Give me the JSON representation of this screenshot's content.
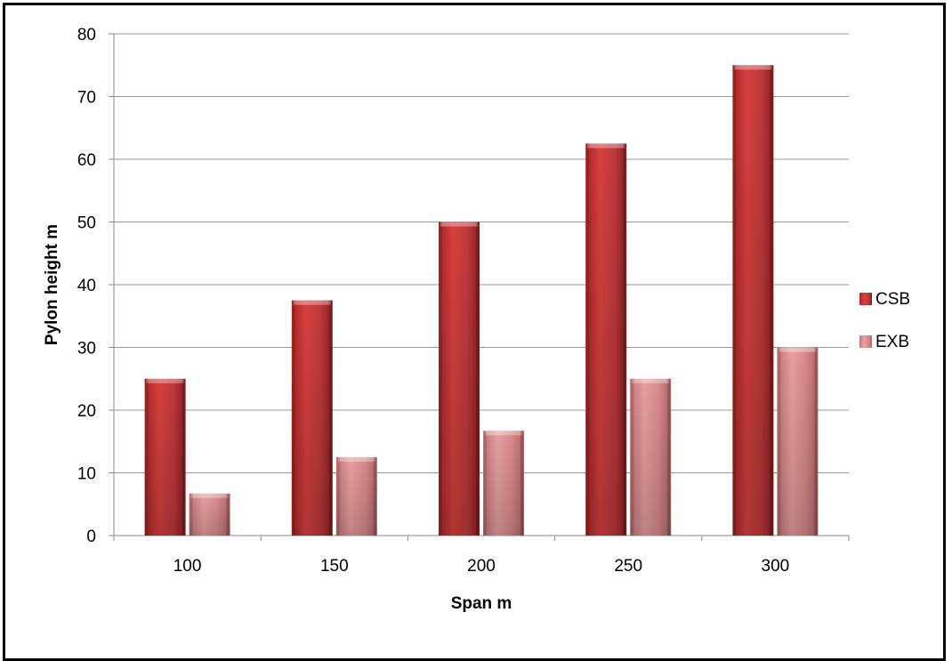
{
  "chart_data": {
    "type": "bar",
    "title": "",
    "xlabel": "Span m",
    "ylabel": "Pylon height m",
    "categories": [
      "100",
      "150",
      "200",
      "250",
      "300"
    ],
    "series": [
      {
        "name": "CSB",
        "values": [
          25,
          37.5,
          50,
          62.5,
          75
        ],
        "color": "#c0393b"
      },
      {
        "name": "EXB",
        "values": [
          6.7,
          12.5,
          16.7,
          25,
          30
        ],
        "color": "#d98a8c"
      }
    ],
    "ylim": [
      0,
      80
    ],
    "yticks": [
      0,
      10,
      20,
      30,
      40,
      50,
      60,
      70,
      80
    ],
    "grid": true,
    "legend_position": "right",
    "style": "3d-beveled"
  }
}
